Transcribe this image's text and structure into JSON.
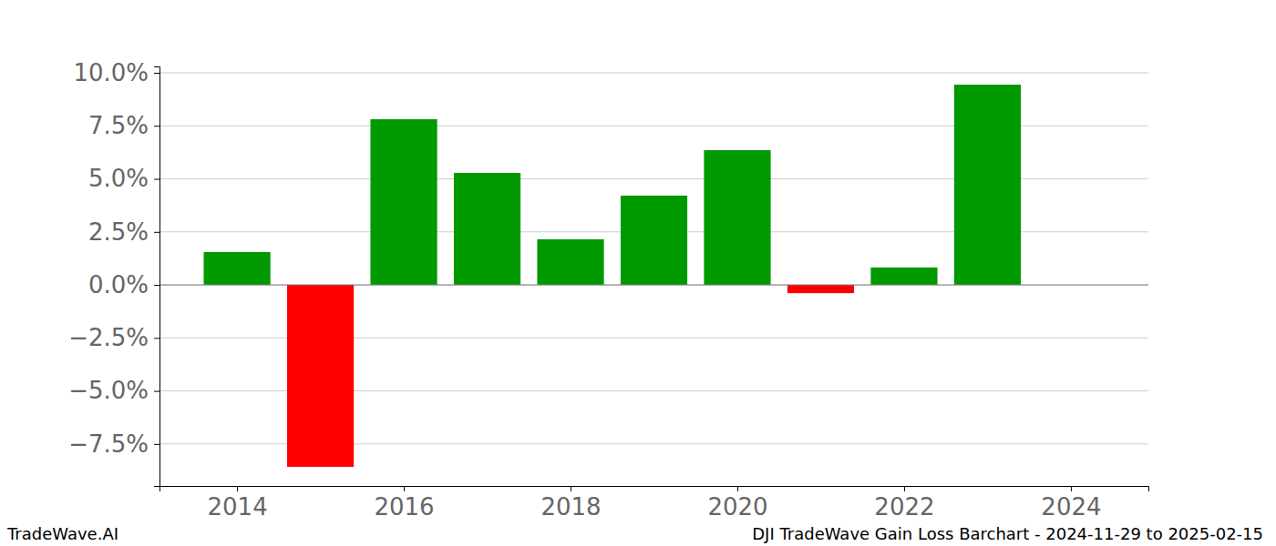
{
  "chart_data": {
    "type": "bar",
    "title": "DJI TradeWave Gain Loss Barchart - 2024-11-29 to 2025-02-15",
    "annotations": [
      "TradeWave.AI"
    ],
    "x": [
      2014,
      2015,
      2016,
      2017,
      2018,
      2019,
      2020,
      2021,
      2022,
      2023
    ],
    "values": [
      1.55,
      -8.58,
      7.81,
      5.28,
      2.15,
      4.21,
      6.35,
      -0.39,
      0.82,
      9.44
    ],
    "colors": [
      "#009900",
      "#ff0000",
      "#009900",
      "#009900",
      "#009900",
      "#009900",
      "#009900",
      "#ff0000",
      "#009900",
      "#009900"
    ],
    "xlim": [
      2013.07,
      2024.93
    ],
    "xticks": [
      2014,
      2016,
      2018,
      2020,
      2022,
      2024
    ],
    "ylim": [
      -9.48,
      10.3
    ],
    "yticks": [
      {
        "value": -7.5,
        "label": "−7.5%"
      },
      {
        "value": -5,
        "label": "−5.0%"
      },
      {
        "value": -2.5,
        "label": "−2.5%"
      },
      {
        "value": 0,
        "label": "0.0%"
      },
      {
        "value": 2.5,
        "label": "2.5%"
      },
      {
        "value": 5,
        "label": "5.0%"
      },
      {
        "value": 7.5,
        "label": "7.5%"
      },
      {
        "value": 10,
        "label": "10.0%"
      }
    ],
    "grid": true
  }
}
